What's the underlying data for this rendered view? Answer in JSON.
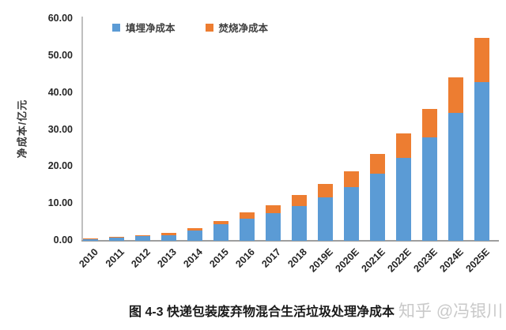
{
  "chart_data": {
    "type": "bar",
    "stacked": true,
    "title": "图 4-3 快递包装废弃物混合生活垃圾处理净成本",
    "ylabel": "净成本/亿元",
    "xlabel": "",
    "grid": false,
    "legend_position": "top",
    "ylim": [
      0,
      60
    ],
    "yticks": [
      60,
      50,
      40,
      30,
      20,
      10,
      0
    ],
    "ytick_labels": [
      "60.00",
      "50.00",
      "40.00",
      "30.00",
      "20.00",
      "10.00",
      "0.00"
    ],
    "categories": [
      "2010",
      "2011",
      "2012",
      "2013",
      "2014",
      "2015",
      "2016",
      "2017",
      "2018",
      "2019E",
      "2020E",
      "2021E",
      "2022E",
      "2023E",
      "2024E",
      "2025E"
    ],
    "series": [
      {
        "name": "填埋净成本",
        "color": "#5B9BD5",
        "values": [
          0.5,
          0.8,
          1.3,
          1.6,
          2.7,
          4.4,
          6.0,
          7.5,
          9.5,
          11.8,
          14.5,
          18.2,
          22.4,
          28.0,
          34.5,
          43.0
        ]
      },
      {
        "name": "焚烧净成本",
        "color": "#ED7D31",
        "values": [
          0.1,
          0.2,
          0.2,
          0.5,
          0.7,
          0.9,
          1.7,
          2.1,
          2.9,
          3.5,
          4.3,
          5.3,
          6.6,
          7.6,
          9.8,
          11.8
        ]
      }
    ]
  },
  "watermark": {
    "text": "知乎 @冯银川"
  },
  "colors": {
    "axis_line": "#BFBFBF",
    "baseline": "#9E9E9E",
    "tick_text": "#262626"
  }
}
